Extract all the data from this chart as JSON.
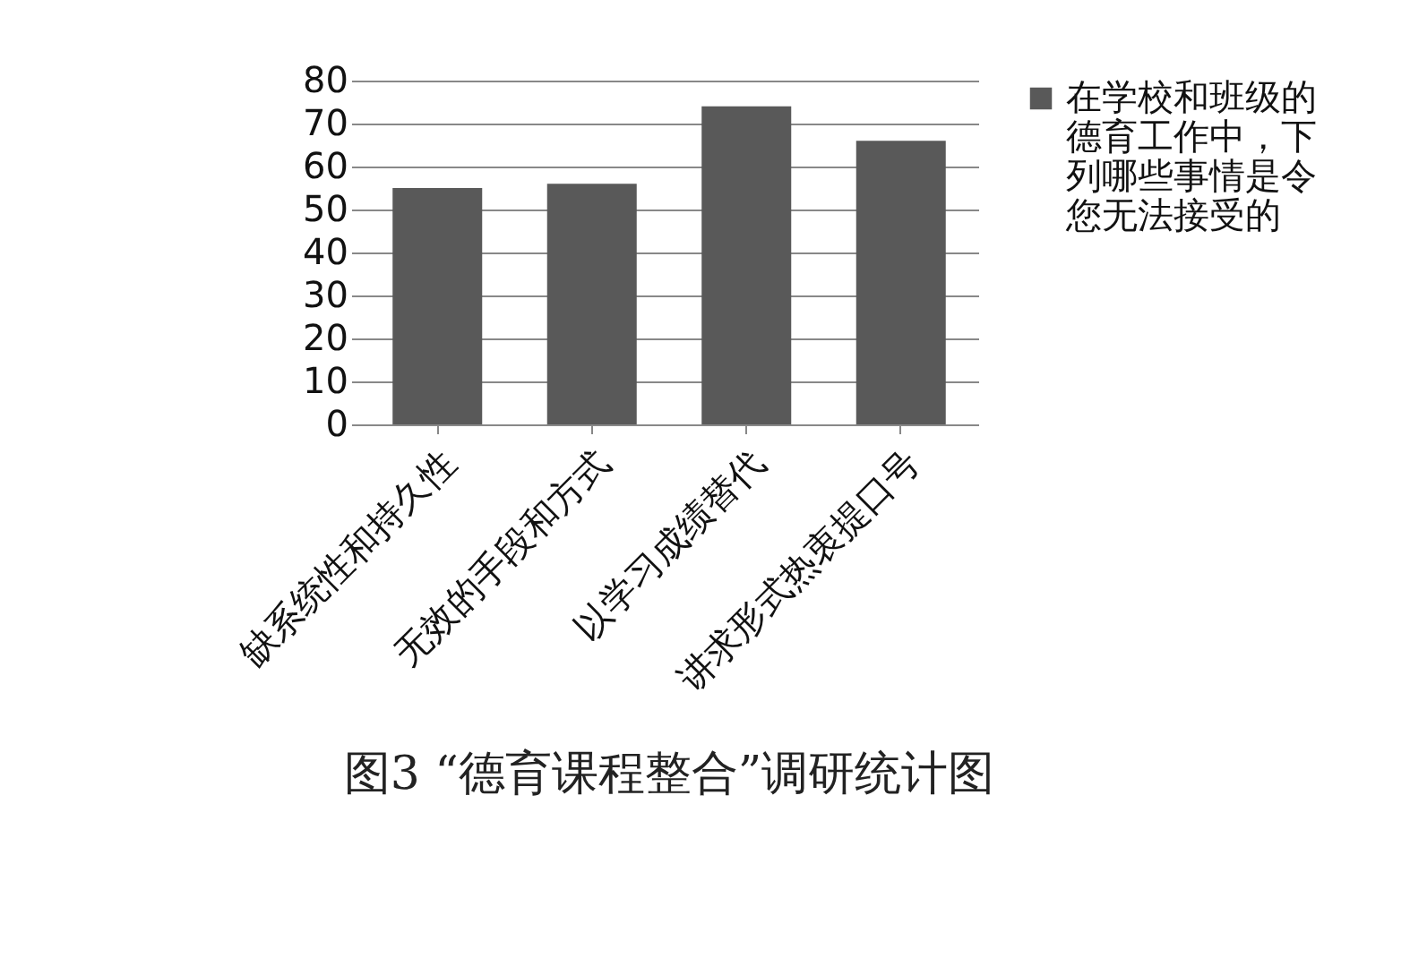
{
  "chart_data": {
    "type": "bar",
    "title": "图3 “德育课程整合”调研统计图",
    "categories": [
      "缺系统性和持久性",
      "无效的手段和方式",
      "以学习成绩替代",
      "讲求形式热衷提口号"
    ],
    "series": [
      {
        "name": "在学校和班级的德育工作中，下列哪些事情是令您无法接受的",
        "color": "#595959",
        "values": [
          55,
          56,
          74,
          66
        ]
      }
    ],
    "ylim": [
      0,
      80
    ],
    "yticks": [
      0,
      10,
      20,
      30,
      40,
      50,
      60,
      70,
      80
    ],
    "grid": "y",
    "legend": "right"
  }
}
